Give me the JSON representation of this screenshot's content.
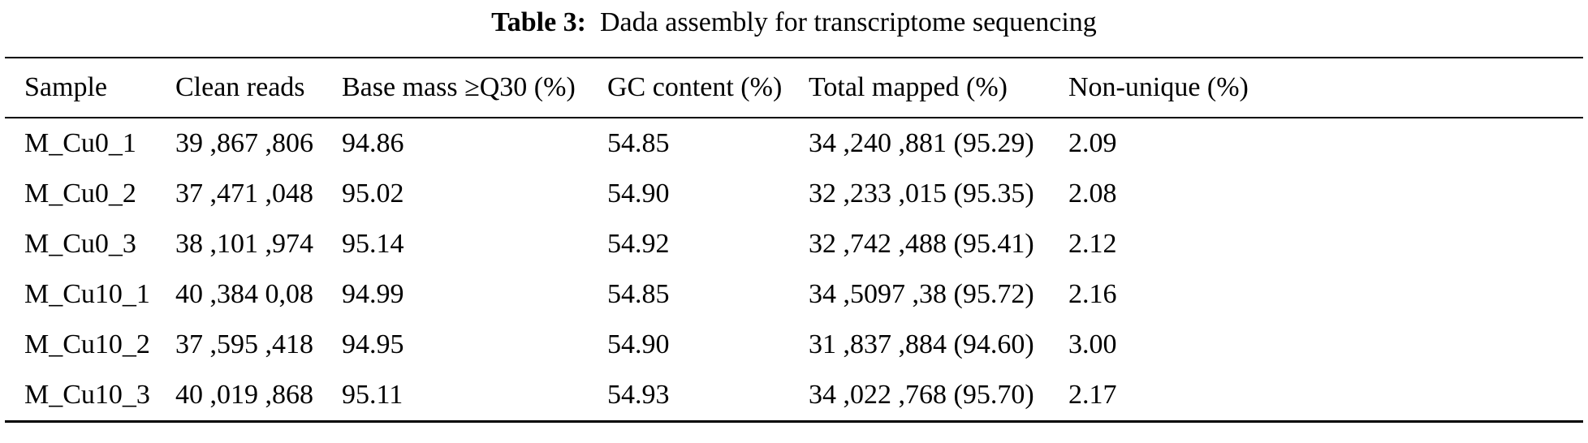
{
  "caption": {
    "label": "Table 3:",
    "text": "Dada assembly for transcriptome sequencing"
  },
  "table": {
    "headers": [
      "Sample",
      "Clean reads",
      "Base mass ≥Q30 (%)",
      "GC content (%)",
      "Total mapped (%)",
      "Non-unique (%)"
    ],
    "rows": [
      [
        "M_Cu0_1",
        "39 ,867 ,806",
        "94.86",
        "54.85",
        "34 ,240 ,881 (95.29)",
        "2.09"
      ],
      [
        "M_Cu0_2",
        "37 ,471 ,048",
        "95.02",
        "54.90",
        "32 ,233 ,015 (95.35)",
        "2.08"
      ],
      [
        "M_Cu0_3",
        "38 ,101 ,974",
        "95.14",
        "54.92",
        "32 ,742 ,488 (95.41)",
        "2.12"
      ],
      [
        "M_Cu10_1",
        "40 ,384 0,08",
        "94.99",
        "54.85",
        "34 ,5097 ,38 (95.72)",
        "2.16"
      ],
      [
        "M_Cu10_2",
        "37 ,595 ,418",
        "94.95",
        "54.90",
        "31 ,837 ,884 (94.60)",
        "3.00"
      ],
      [
        "M_Cu10_3",
        "40 ,019 ,868",
        "95.11",
        "54.93",
        "34 ,022 ,768 (95.70)",
        "2.17"
      ]
    ]
  }
}
